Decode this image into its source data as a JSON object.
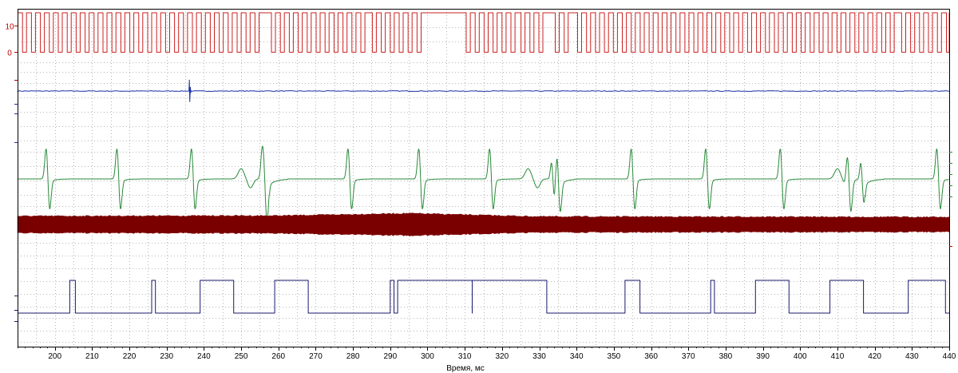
{
  "chart_data": {
    "type": "line",
    "xlabel": "Время, мс",
    "xlim": [
      190,
      440
    ],
    "xticks": [
      200,
      210,
      220,
      230,
      240,
      250,
      260,
      270,
      280,
      290,
      300,
      310,
      320,
      330,
      340,
      350,
      360,
      370,
      380,
      390,
      400,
      410,
      420,
      430,
      440
    ],
    "grid": true,
    "channels": [
      {
        "id": "ch1",
        "color": "#cc2020",
        "kind": "digital",
        "ylim": [
          -2,
          15
        ],
        "yticks": [
          0,
          10
        ],
        "low": 0,
        "high": 15,
        "gaps": [
          [
            255,
            258
          ],
          [
            283,
            285
          ],
          [
            299,
            310
          ],
          [
            323,
            325
          ],
          [
            331,
            334
          ],
          [
            338,
            340
          ],
          [
            422,
            424
          ],
          [
            425,
            427
          ]
        ],
        "period": 2.4,
        "duty": 0.55
      },
      {
        "id": "ch2",
        "color": "#1a2fa8",
        "kind": "flat-with-spike",
        "baseline": 0,
        "spike_at": 236,
        "ylim": [
          -3,
          3
        ]
      },
      {
        "id": "ch3",
        "color": "#2a8a3a",
        "kind": "spikes",
        "baseline": 0,
        "ylim": [
          -1.2,
          1.2
        ],
        "spikes_at": [
          198,
          217,
          237,
          256,
          279,
          298,
          317,
          335,
          355,
          375,
          395,
          413,
          437
        ],
        "bumps_at": [
          250,
          327,
          410
        ]
      },
      {
        "id": "ch4",
        "color": "#7a0000",
        "kind": "noise-band",
        "band": [
          {
            "x": 190,
            "half": 0.9
          },
          {
            "x": 260,
            "half": 0.95
          },
          {
            "x": 295,
            "half": 1.2
          },
          {
            "x": 310,
            "half": 1.05
          },
          {
            "x": 330,
            "half": 0.85
          },
          {
            "x": 440,
            "half": 0.8
          }
        ],
        "ylim": [
          -1.5,
          1.5
        ]
      },
      {
        "id": "ch5",
        "color": "#1a1a6e",
        "kind": "digital",
        "ylim": [
          -0.3,
          1.3
        ],
        "low": 0,
        "high": 1,
        "pulses": [
          [
            204,
            205.5
          ],
          [
            226,
            227
          ],
          [
            239,
            248
          ],
          [
            259,
            268
          ],
          [
            290,
            291
          ],
          [
            292,
            312
          ],
          [
            312,
            332
          ],
          [
            353,
            357
          ],
          [
            376,
            377
          ],
          [
            388,
            397
          ],
          [
            408,
            417
          ],
          [
            429,
            439
          ]
        ]
      }
    ]
  }
}
